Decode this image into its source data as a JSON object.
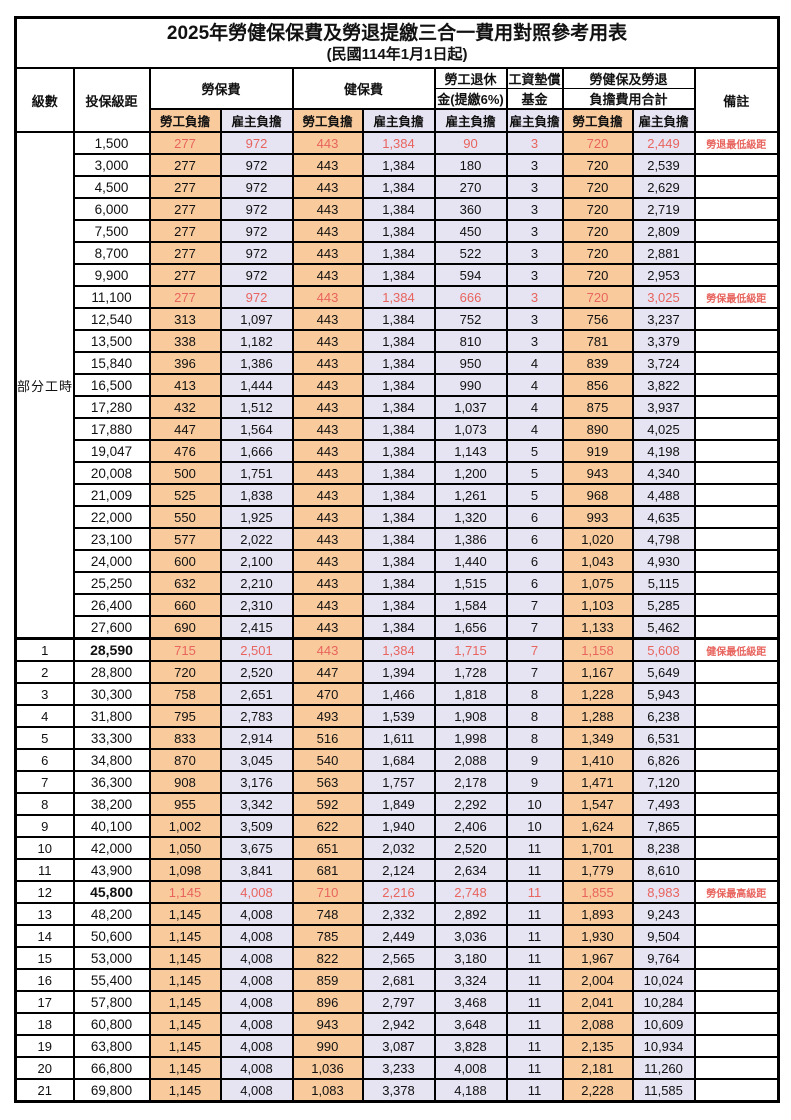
{
  "title": {
    "main": "2025年勞健保保費及勞退提繳三合一費用對照參考用表",
    "sub": "(民國114年1月1日起)"
  },
  "header": {
    "level": "級數",
    "bracket": "投保級距",
    "labor_insurance": "勞保費",
    "health_insurance": "健保費",
    "pension_line1": "勞工退休",
    "pension_line2": "金(提繳6%)",
    "wage_fund_line1": "工資墊償",
    "wage_fund_line2": "基金",
    "total_line1": "勞健保及勞退",
    "total_line2": "負擔費用合計",
    "remark": "備註",
    "employee_share": "勞工負擔",
    "employer_share": "雇主負擔"
  },
  "part_time_label": "部分工時",
  "part_time_rowspan": 23,
  "colors": {
    "employee_bg": "#F9CB9C",
    "employer_bg": "#E6E4F3",
    "highlight_red": "#E8645E",
    "border": "#000000"
  },
  "rows": [
    {
      "lv": "",
      "br": "1,500",
      "v": [
        "277",
        "972",
        "443",
        "1,384",
        "90",
        "3",
        "720",
        "2,449"
      ],
      "rm": "勞退最低級距",
      "red": true,
      "bold": false,
      "sec": false
    },
    {
      "lv": "",
      "br": "3,000",
      "v": [
        "277",
        "972",
        "443",
        "1,384",
        "180",
        "3",
        "720",
        "2,539"
      ],
      "rm": "",
      "red": false,
      "bold": false,
      "sec": false
    },
    {
      "lv": "",
      "br": "4,500",
      "v": [
        "277",
        "972",
        "443",
        "1,384",
        "270",
        "3",
        "720",
        "2,629"
      ],
      "rm": "",
      "red": false,
      "bold": false,
      "sec": false
    },
    {
      "lv": "",
      "br": "6,000",
      "v": [
        "277",
        "972",
        "443",
        "1,384",
        "360",
        "3",
        "720",
        "2,719"
      ],
      "rm": "",
      "red": false,
      "bold": false,
      "sec": false
    },
    {
      "lv": "",
      "br": "7,500",
      "v": [
        "277",
        "972",
        "443",
        "1,384",
        "450",
        "3",
        "720",
        "2,809"
      ],
      "rm": "",
      "red": false,
      "bold": false,
      "sec": false
    },
    {
      "lv": "",
      "br": "8,700",
      "v": [
        "277",
        "972",
        "443",
        "1,384",
        "522",
        "3",
        "720",
        "2,881"
      ],
      "rm": "",
      "red": false,
      "bold": false,
      "sec": false
    },
    {
      "lv": "",
      "br": "9,900",
      "v": [
        "277",
        "972",
        "443",
        "1,384",
        "594",
        "3",
        "720",
        "2,953"
      ],
      "rm": "",
      "red": false,
      "bold": false,
      "sec": false
    },
    {
      "lv": "",
      "br": "11,100",
      "v": [
        "277",
        "972",
        "443",
        "1,384",
        "666",
        "3",
        "720",
        "3,025"
      ],
      "rm": "勞保最低級距",
      "red": true,
      "bold": false,
      "sec": false
    },
    {
      "lv": "",
      "br": "12,540",
      "v": [
        "313",
        "1,097",
        "443",
        "1,384",
        "752",
        "3",
        "756",
        "3,237"
      ],
      "rm": "",
      "red": false,
      "bold": false,
      "sec": false
    },
    {
      "lv": "",
      "br": "13,500",
      "v": [
        "338",
        "1,182",
        "443",
        "1,384",
        "810",
        "3",
        "781",
        "3,379"
      ],
      "rm": "",
      "red": false,
      "bold": false,
      "sec": false
    },
    {
      "lv": "",
      "br": "15,840",
      "v": [
        "396",
        "1,386",
        "443",
        "1,384",
        "950",
        "4",
        "839",
        "3,724"
      ],
      "rm": "",
      "red": false,
      "bold": false,
      "sec": false
    },
    {
      "lv": "",
      "br": "16,500",
      "v": [
        "413",
        "1,444",
        "443",
        "1,384",
        "990",
        "4",
        "856",
        "3,822"
      ],
      "rm": "",
      "red": false,
      "bold": false,
      "sec": false
    },
    {
      "lv": "",
      "br": "17,280",
      "v": [
        "432",
        "1,512",
        "443",
        "1,384",
        "1,037",
        "4",
        "875",
        "3,937"
      ],
      "rm": "",
      "red": false,
      "bold": false,
      "sec": false
    },
    {
      "lv": "",
      "br": "17,880",
      "v": [
        "447",
        "1,564",
        "443",
        "1,384",
        "1,073",
        "4",
        "890",
        "4,025"
      ],
      "rm": "",
      "red": false,
      "bold": false,
      "sec": false
    },
    {
      "lv": "",
      "br": "19,047",
      "v": [
        "476",
        "1,666",
        "443",
        "1,384",
        "1,143",
        "5",
        "919",
        "4,198"
      ],
      "rm": "",
      "red": false,
      "bold": false,
      "sec": false
    },
    {
      "lv": "",
      "br": "20,008",
      "v": [
        "500",
        "1,751",
        "443",
        "1,384",
        "1,200",
        "5",
        "943",
        "4,340"
      ],
      "rm": "",
      "red": false,
      "bold": false,
      "sec": false
    },
    {
      "lv": "",
      "br": "21,009",
      "v": [
        "525",
        "1,838",
        "443",
        "1,384",
        "1,261",
        "5",
        "968",
        "4,488"
      ],
      "rm": "",
      "red": false,
      "bold": false,
      "sec": false
    },
    {
      "lv": "",
      "br": "22,000",
      "v": [
        "550",
        "1,925",
        "443",
        "1,384",
        "1,320",
        "6",
        "993",
        "4,635"
      ],
      "rm": "",
      "red": false,
      "bold": false,
      "sec": false
    },
    {
      "lv": "",
      "br": "23,100",
      "v": [
        "577",
        "2,022",
        "443",
        "1,384",
        "1,386",
        "6",
        "1,020",
        "4,798"
      ],
      "rm": "",
      "red": false,
      "bold": false,
      "sec": false
    },
    {
      "lv": "",
      "br": "24,000",
      "v": [
        "600",
        "2,100",
        "443",
        "1,384",
        "1,440",
        "6",
        "1,043",
        "4,930"
      ],
      "rm": "",
      "red": false,
      "bold": false,
      "sec": false
    },
    {
      "lv": "",
      "br": "25,250",
      "v": [
        "632",
        "2,210",
        "443",
        "1,384",
        "1,515",
        "6",
        "1,075",
        "5,115"
      ],
      "rm": "",
      "red": false,
      "bold": false,
      "sec": false
    },
    {
      "lv": "",
      "br": "26,400",
      "v": [
        "660",
        "2,310",
        "443",
        "1,384",
        "1,584",
        "7",
        "1,103",
        "5,285"
      ],
      "rm": "",
      "red": false,
      "bold": false,
      "sec": false
    },
    {
      "lv": "",
      "br": "27,600",
      "v": [
        "690",
        "2,415",
        "443",
        "1,384",
        "1,656",
        "7",
        "1,133",
        "5,462"
      ],
      "rm": "",
      "red": false,
      "bold": false,
      "sec": false
    },
    {
      "lv": "1",
      "br": "28,590",
      "v": [
        "715",
        "2,501",
        "443",
        "1,384",
        "1,715",
        "7",
        "1,158",
        "5,608"
      ],
      "rm": "健保最低級距",
      "red": true,
      "bold": true,
      "sec": true
    },
    {
      "lv": "2",
      "br": "28,800",
      "v": [
        "720",
        "2,520",
        "447",
        "1,394",
        "1,728",
        "7",
        "1,167",
        "5,649"
      ],
      "rm": "",
      "red": false,
      "bold": false,
      "sec": false
    },
    {
      "lv": "3",
      "br": "30,300",
      "v": [
        "758",
        "2,651",
        "470",
        "1,466",
        "1,818",
        "8",
        "1,228",
        "5,943"
      ],
      "rm": "",
      "red": false,
      "bold": false,
      "sec": false
    },
    {
      "lv": "4",
      "br": "31,800",
      "v": [
        "795",
        "2,783",
        "493",
        "1,539",
        "1,908",
        "8",
        "1,288",
        "6,238"
      ],
      "rm": "",
      "red": false,
      "bold": false,
      "sec": false
    },
    {
      "lv": "5",
      "br": "33,300",
      "v": [
        "833",
        "2,914",
        "516",
        "1,611",
        "1,998",
        "8",
        "1,349",
        "6,531"
      ],
      "rm": "",
      "red": false,
      "bold": false,
      "sec": false
    },
    {
      "lv": "6",
      "br": "34,800",
      "v": [
        "870",
        "3,045",
        "540",
        "1,684",
        "2,088",
        "9",
        "1,410",
        "6,826"
      ],
      "rm": "",
      "red": false,
      "bold": false,
      "sec": false
    },
    {
      "lv": "7",
      "br": "36,300",
      "v": [
        "908",
        "3,176",
        "563",
        "1,757",
        "2,178",
        "9",
        "1,471",
        "7,120"
      ],
      "rm": "",
      "red": false,
      "bold": false,
      "sec": false
    },
    {
      "lv": "8",
      "br": "38,200",
      "v": [
        "955",
        "3,342",
        "592",
        "1,849",
        "2,292",
        "10",
        "1,547",
        "7,493"
      ],
      "rm": "",
      "red": false,
      "bold": false,
      "sec": false
    },
    {
      "lv": "9",
      "br": "40,100",
      "v": [
        "1,002",
        "3,509",
        "622",
        "1,940",
        "2,406",
        "10",
        "1,624",
        "7,865"
      ],
      "rm": "",
      "red": false,
      "bold": false,
      "sec": false
    },
    {
      "lv": "10",
      "br": "42,000",
      "v": [
        "1,050",
        "3,675",
        "651",
        "2,032",
        "2,520",
        "11",
        "1,701",
        "8,238"
      ],
      "rm": "",
      "red": false,
      "bold": false,
      "sec": false
    },
    {
      "lv": "11",
      "br": "43,900",
      "v": [
        "1,098",
        "3,841",
        "681",
        "2,124",
        "2,634",
        "11",
        "1,779",
        "8,610"
      ],
      "rm": "",
      "red": false,
      "bold": false,
      "sec": false
    },
    {
      "lv": "12",
      "br": "45,800",
      "v": [
        "1,145",
        "4,008",
        "710",
        "2,216",
        "2,748",
        "11",
        "1,855",
        "8,983"
      ],
      "rm": "勞保最高級距",
      "red": true,
      "bold": true,
      "sec": false
    },
    {
      "lv": "13",
      "br": "48,200",
      "v": [
        "1,145",
        "4,008",
        "748",
        "2,332",
        "2,892",
        "11",
        "1,893",
        "9,243"
      ],
      "rm": "",
      "red": false,
      "bold": false,
      "sec": false
    },
    {
      "lv": "14",
      "br": "50,600",
      "v": [
        "1,145",
        "4,008",
        "785",
        "2,449",
        "3,036",
        "11",
        "1,930",
        "9,504"
      ],
      "rm": "",
      "red": false,
      "bold": false,
      "sec": false
    },
    {
      "lv": "15",
      "br": "53,000",
      "v": [
        "1,145",
        "4,008",
        "822",
        "2,565",
        "3,180",
        "11",
        "1,967",
        "9,764"
      ],
      "rm": "",
      "red": false,
      "bold": false,
      "sec": false
    },
    {
      "lv": "16",
      "br": "55,400",
      "v": [
        "1,145",
        "4,008",
        "859",
        "2,681",
        "3,324",
        "11",
        "2,004",
        "10,024"
      ],
      "rm": "",
      "red": false,
      "bold": false,
      "sec": false
    },
    {
      "lv": "17",
      "br": "57,800",
      "v": [
        "1,145",
        "4,008",
        "896",
        "2,797",
        "3,468",
        "11",
        "2,041",
        "10,284"
      ],
      "rm": "",
      "red": false,
      "bold": false,
      "sec": false
    },
    {
      "lv": "18",
      "br": "60,800",
      "v": [
        "1,145",
        "4,008",
        "943",
        "2,942",
        "3,648",
        "11",
        "2,088",
        "10,609"
      ],
      "rm": "",
      "red": false,
      "bold": false,
      "sec": false
    },
    {
      "lv": "19",
      "br": "63,800",
      "v": [
        "1,145",
        "4,008",
        "990",
        "3,087",
        "3,828",
        "11",
        "2,135",
        "10,934"
      ],
      "rm": "",
      "red": false,
      "bold": false,
      "sec": false
    },
    {
      "lv": "20",
      "br": "66,800",
      "v": [
        "1,145",
        "4,008",
        "1,036",
        "3,233",
        "4,008",
        "11",
        "2,181",
        "11,260"
      ],
      "rm": "",
      "red": false,
      "bold": false,
      "sec": false
    },
    {
      "lv": "21",
      "br": "69,800",
      "v": [
        "1,145",
        "4,008",
        "1,083",
        "3,378",
        "4,188",
        "11",
        "2,228",
        "11,585"
      ],
      "rm": "",
      "red": false,
      "bold": false,
      "sec": false
    }
  ]
}
